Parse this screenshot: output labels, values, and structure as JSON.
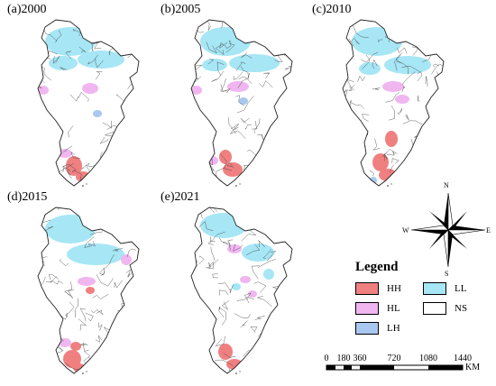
{
  "panels": [
    {
      "title": "(a)2000"
    },
    {
      "title": "(b)2005"
    },
    {
      "title": "(c)2010"
    },
    {
      "title": "(d)2015"
    },
    {
      "title": "(e)2021"
    }
  ],
  "colors": {
    "HH": "#f08080",
    "HL": "#f0b6f0",
    "LH": "#a9c8f0",
    "LL": "#a6e6f5",
    "NS": "#ffffff",
    "boundary": "#3a3a3a"
  },
  "legend": {
    "title": "Legend",
    "items": [
      {
        "code": "HH",
        "label": "HH",
        "color": "#f08080"
      },
      {
        "code": "LL",
        "label": "LL",
        "color": "#a6e6f5"
      },
      {
        "code": "HL",
        "label": "HL",
        "color": "#f0b6f0"
      },
      {
        "code": "NS",
        "label": "NS",
        "color": "#ffffff"
      },
      {
        "code": "LH",
        "label": "LH",
        "color": "#a9c8f0"
      }
    ]
  },
  "compass": {
    "n": "N",
    "s": "S",
    "e": "E",
    "w": "W"
  },
  "scale": {
    "ticks": [
      "0",
      "180",
      "360",
      "720",
      "1080",
      "1440"
    ],
    "unit": "KM"
  }
}
